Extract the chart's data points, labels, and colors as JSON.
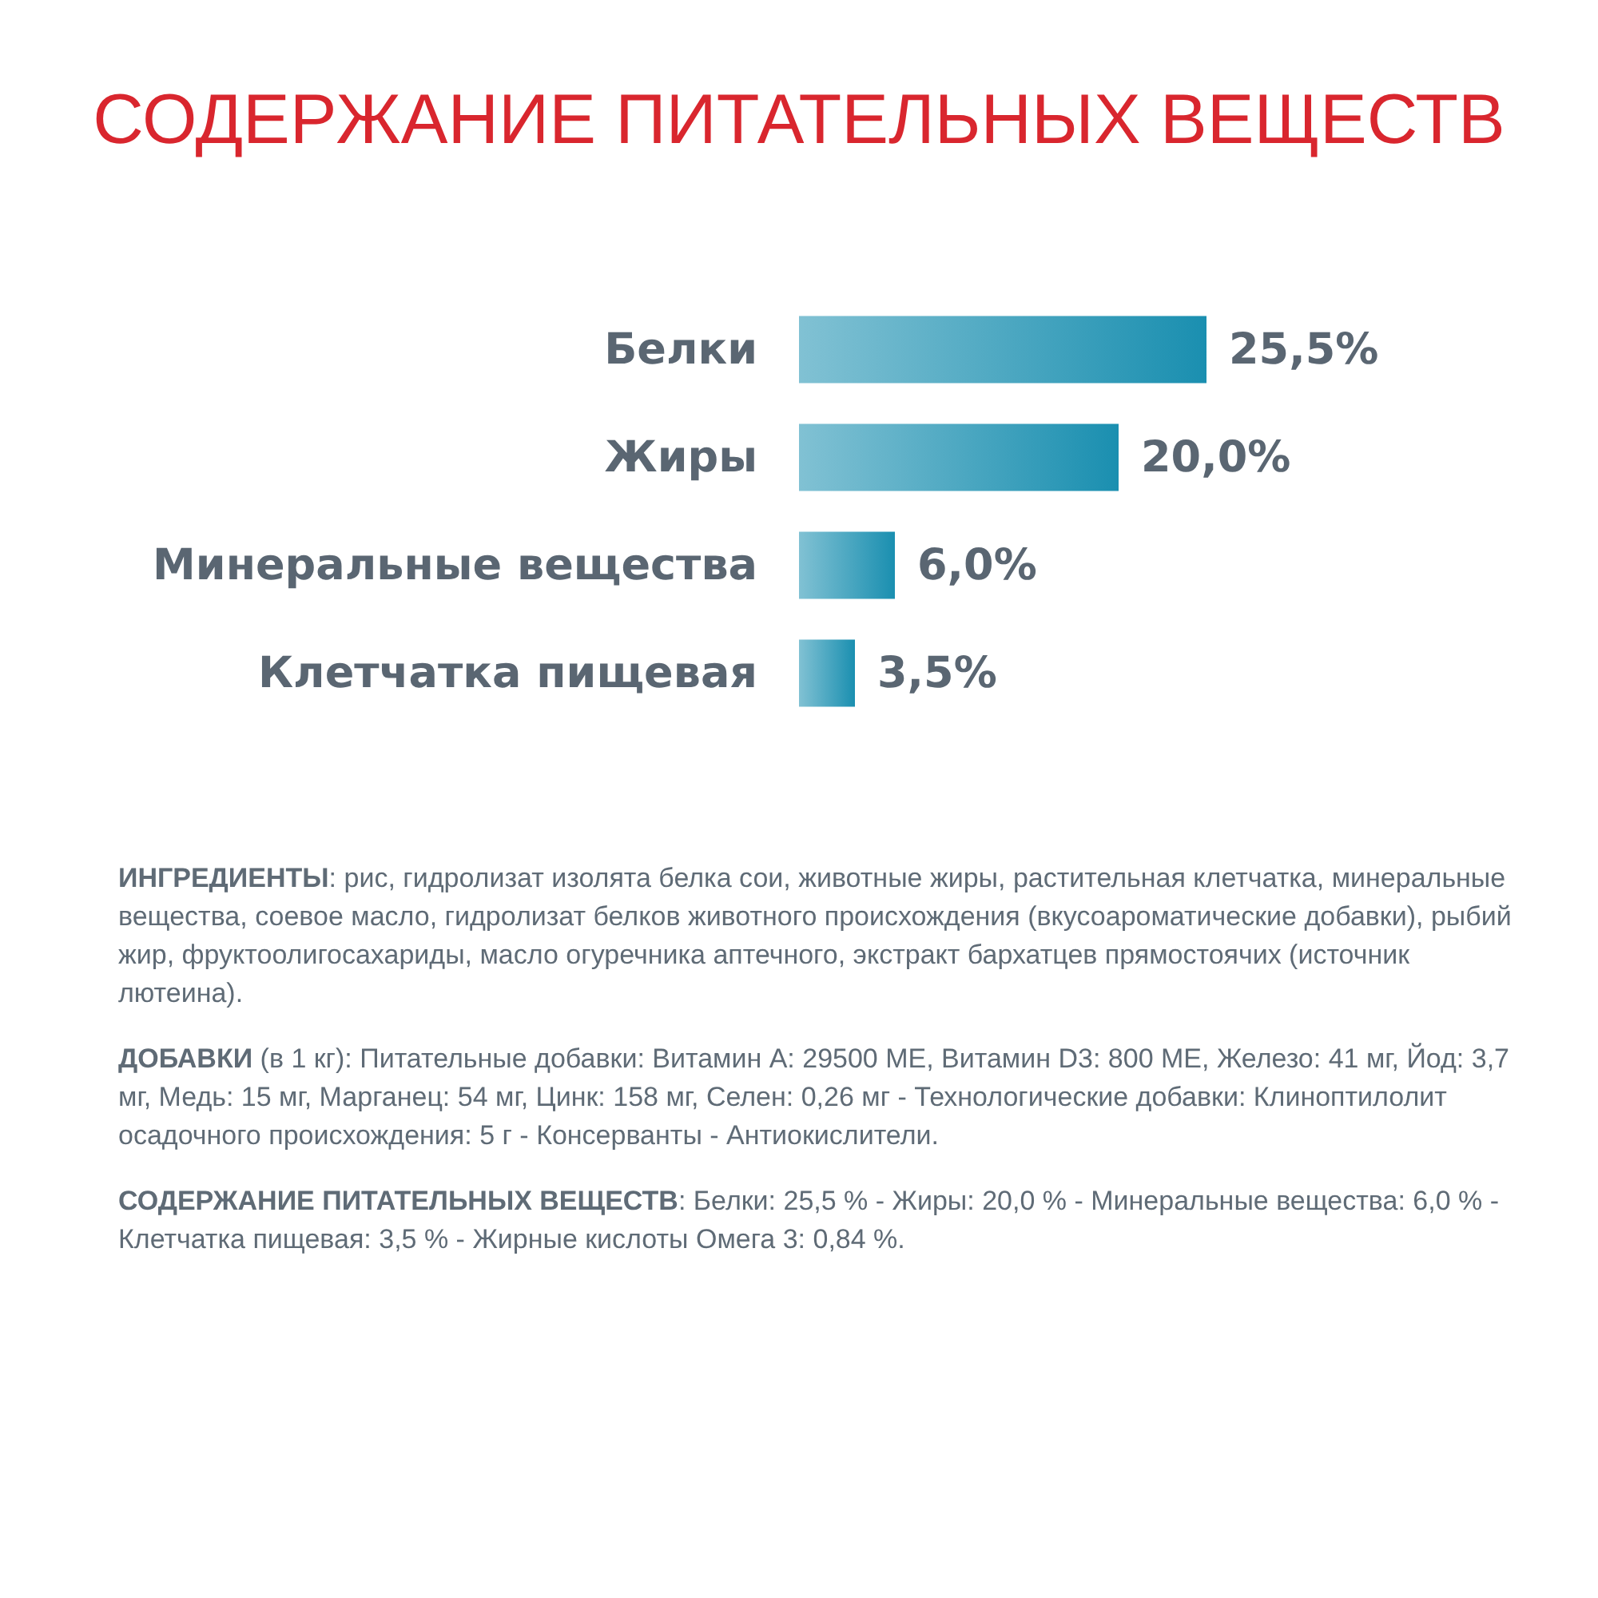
{
  "chart_data": {
    "type": "bar",
    "orientation": "horizontal",
    "title": "СОДЕРЖАНИЕ ПИТАТЕЛЬНЫХ ВЕЩЕСТВ",
    "categories": [
      "Белки",
      "Жиры",
      "Минеральные вещества",
      "Клетчатка пищевая"
    ],
    "values": [
      25.5,
      20.0,
      6.0,
      3.5
    ],
    "value_labels": [
      "25,5%",
      "20,0%",
      "6,0%",
      "3,5%"
    ],
    "color": "#1a8fb0",
    "annotations": [
      "ИНГРЕДИЕНТЫ: рис, гидролизат изолята белка сои, животные жиры, растительная клетчатка, минеральные вещества, соевое масло, гидролизат белков животного происхождения (вкусоароматические добавки), рыбий жир, фруктоолигосахариды, масло огуречника аптечного, экстракт бархатцев прямостоячих (источник лютеина).",
      "ДОБАВКИ (в 1 кг): Питательные добавки: Витамин А: 29500 МЕ, Витамин D3: 800 МЕ, Железо: 41 мг, Йод: 3,7 мг, Медь: 15 мг, Марганец: 54 мг, Цинк: 158 мг, Селен: 0,26 мг - Технологические добавки: Клиноптилолит осадочного происхождения: 5 г - Консерванты - Антиокислители.",
      "СОДЕРЖАНИЕ ПИТАТЕЛЬНЫХ ВЕЩЕСТВ: Белки: 25,5 % - Жиры: 20,0 % - Минеральные вещества: 6,0 % - Клетчатка пищевая: 3,5 % - Жирные кислоты Омега 3: 0,84 %."
    ]
  }
}
